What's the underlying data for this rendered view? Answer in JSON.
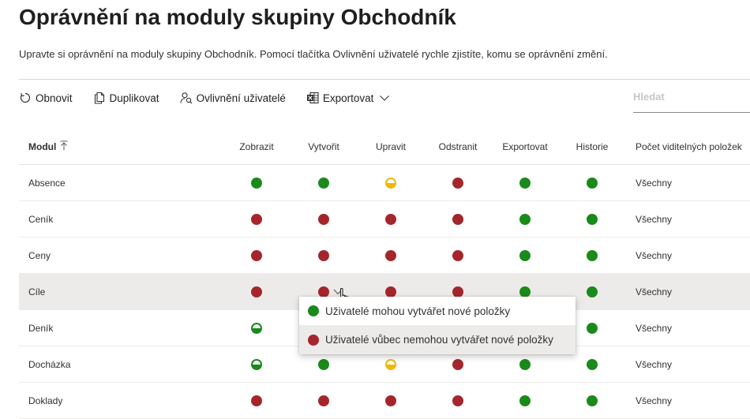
{
  "page": {
    "title": "Oprávnění na moduly skupiny Obchodník",
    "subtitle": "Upravte si oprávnění na moduly skupiny Obchodník. Pomocí tlačítka Ovlivnění uživatelé rychle zjistíte, komu se oprávnění změní."
  },
  "toolbar": {
    "refresh": {
      "label": "Obnovit",
      "icon": "refresh-icon"
    },
    "duplicate": {
      "label": "Duplikovat",
      "icon": "copy-icon"
    },
    "affected_users": {
      "label": "Ovlivnění uživatelé",
      "icon": "user-search-icon"
    },
    "export": {
      "label": "Exportovat",
      "icon": "excel-icon"
    }
  },
  "search": {
    "placeholder": "Hledat",
    "value": ""
  },
  "table": {
    "headers": {
      "module": "Modul",
      "view": "Zobrazit",
      "create": "Vytvořit",
      "edit": "Upravit",
      "delete": "Odstranit",
      "export": "Exportovat",
      "history": "Historie",
      "visible_count": "Počet viditelných položek"
    },
    "sort_icon": "sort-ascending-icon",
    "rows": [
      {
        "name": "Absence",
        "perms": [
          "green",
          "green",
          "half-yellow",
          "red",
          "green",
          "green"
        ],
        "count": "Všechny"
      },
      {
        "name": "Ceník",
        "perms": [
          "red",
          "red",
          "red",
          "red",
          "green",
          "green"
        ],
        "count": "Všechny"
      },
      {
        "name": "Ceny",
        "perms": [
          "red",
          "red",
          "red",
          "red",
          "green",
          "green"
        ],
        "count": "Všechny"
      },
      {
        "name": "Cíle",
        "perms": [
          "red",
          "red",
          "red",
          "red",
          "green",
          "green"
        ],
        "count": "Všechny"
      },
      {
        "name": "Deník",
        "perms": [
          "half-green",
          "",
          "",
          "",
          "",
          "green"
        ],
        "count": "Všechny"
      },
      {
        "name": "Docházka",
        "perms": [
          "half-green",
          "green",
          "half-yellow",
          "red",
          "green",
          "green"
        ],
        "count": "Všechny"
      },
      {
        "name": "Doklady",
        "perms": [
          "red",
          "red",
          "red",
          "red",
          "green",
          "green"
        ],
        "count": "Všechny"
      }
    ],
    "hovered_row": 3
  },
  "dropdown": {
    "options": [
      {
        "label": "Uživatelé mohou vytvářet nové položky",
        "status": "green"
      },
      {
        "label": "Uživatelé vůbec nemohou vytvářet nové položky",
        "status": "red"
      }
    ],
    "hovered_option": 1
  },
  "colors": {
    "green": "#1a8a1a",
    "red": "#a4262c",
    "yellow": "#f2b705",
    "hover_bg": "#edebe9"
  }
}
